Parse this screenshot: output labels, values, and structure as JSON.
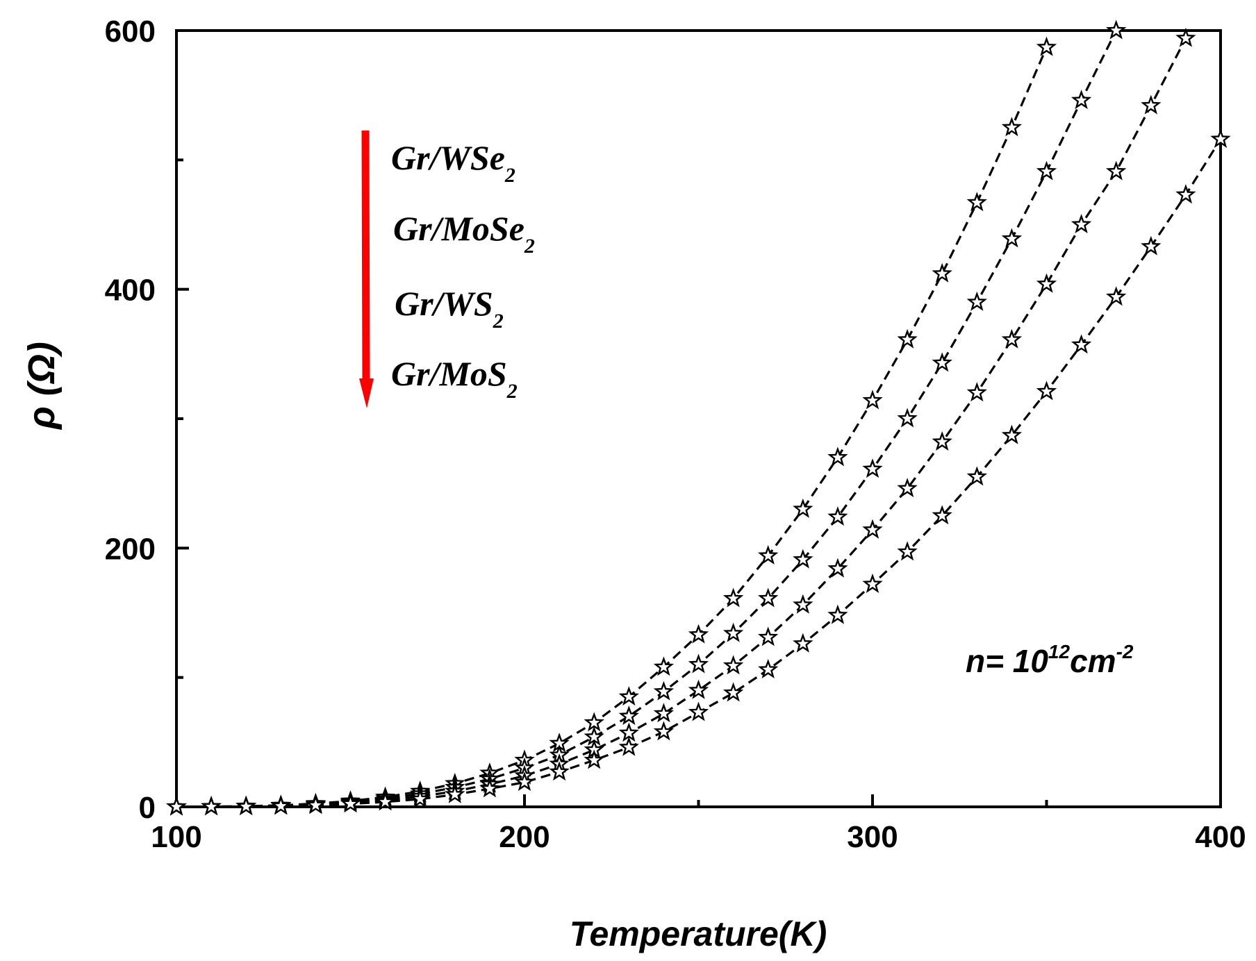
{
  "chart_data": {
    "type": "line",
    "title": "",
    "xlabel": "Temperature(K)",
    "ylabel": "ρ (Ω)",
    "xlim": [
      100,
      400
    ],
    "ylim": [
      0,
      600
    ],
    "x_ticks": [
      100,
      200,
      300,
      400
    ],
    "y_ticks": [
      0,
      200,
      400,
      600
    ],
    "x_tick_labels": [
      "100",
      "200",
      "300",
      "400"
    ],
    "y_tick_labels": [
      "0",
      "200",
      "400",
      "600"
    ],
    "grid": false,
    "marker": "open-star",
    "line_style": "dashed",
    "line_color": "#000000",
    "arrow_color": "#ff0000",
    "x": [
      100,
      110,
      120,
      130,
      140,
      150,
      160,
      170,
      180,
      190,
      200,
      210,
      220,
      230,
      240,
      250,
      260,
      270,
      280,
      290,
      300,
      310,
      320,
      330,
      340,
      350,
      360,
      370,
      380,
      390,
      400
    ],
    "series": [
      {
        "name": "Gr/WSe2",
        "values": [
          0,
          0.2,
          0.5,
          1.2,
          2.5,
          4.5,
          7.5,
          12,
          18,
          26,
          36,
          49,
          65,
          85,
          108,
          133,
          161,
          194,
          230,
          270,
          314,
          361,
          412,
          467,
          525,
          587,
          null,
          null,
          null,
          null,
          null
        ]
      },
      {
        "name": "Gr/MoSe2",
        "values": [
          0,
          0.2,
          0.4,
          1,
          2,
          3.7,
          6.2,
          10,
          15,
          21.5,
          30,
          40,
          54,
          70,
          89,
          110,
          134,
          161,
          191,
          224,
          261,
          300,
          343,
          390,
          439,
          491,
          546,
          600,
          null,
          null,
          null
        ]
      },
      {
        "name": "Gr/WS2",
        "values": [
          0,
          0.1,
          0.3,
          0.8,
          1.6,
          3,
          5,
          8,
          12,
          17.5,
          24,
          33,
          44,
          57,
          72,
          90,
          109,
          131,
          156,
          184,
          214,
          246,
          282,
          320,
          361,
          404,
          450,
          491,
          542,
          594,
          null
        ]
      },
      {
        "name": "Gr/MoS2",
        "values": [
          0,
          0.1,
          0.2,
          0.6,
          1.2,
          2.3,
          3.8,
          6,
          9.5,
          14,
          19,
          27,
          36,
          46,
          58,
          73,
          88,
          106,
          126,
          148,
          172,
          197,
          225,
          255,
          287,
          321,
          357,
          394,
          433,
          473,
          516
        ]
      }
    ],
    "legend": {
      "placement": "top-left",
      "entries": [
        {
          "main": "Gr/WSe",
          "sub": "2"
        },
        {
          "main": "Gr/MoSe",
          "sub": "2"
        },
        {
          "main": "Gr/WS",
          "sub": "2"
        },
        {
          "main": "Gr/MoS",
          "sub": "2"
        }
      ]
    },
    "annotation": {
      "n": "n= 10",
      "exp1": "12",
      "unit": "cm",
      "exp2": "-2"
    }
  }
}
